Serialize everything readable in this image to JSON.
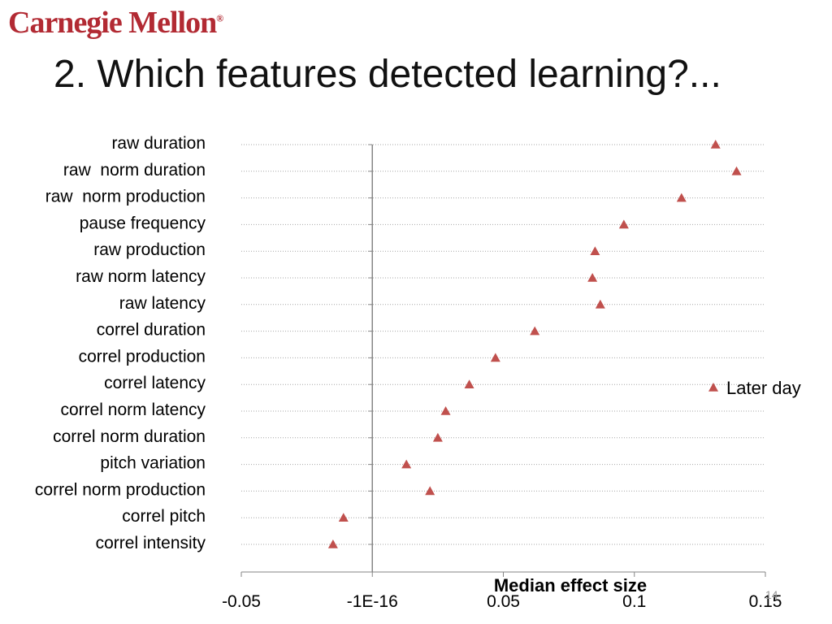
{
  "header": {
    "logo_text": "Carnegie Mellon",
    "logo_reg": "®"
  },
  "slide": {
    "title": "2. Which features detected learning?...",
    "page_number": "14"
  },
  "colors": {
    "marker": "#c0504d",
    "gridline": "#a6a6a6",
    "axis": "#868686",
    "text": "#000000"
  },
  "chart_data": {
    "type": "scatter",
    "title": "",
    "xlabel": "Median effect size",
    "ylabel": "",
    "xlim": [
      -0.05,
      0.15
    ],
    "x_ticks": [
      -0.05,
      0,
      0.05,
      0.1,
      0.15
    ],
    "x_tick_labels": [
      "-0.05",
      "-1E-16",
      "0.05",
      "0.1",
      "0.15"
    ],
    "grid": "horizontal dotted",
    "legend_position": "right",
    "categories": [
      "raw duration",
      "raw  norm duration",
      "raw  norm production",
      "pause frequency",
      "raw production",
      "raw norm latency",
      "raw latency",
      "correl duration",
      "correl production",
      "correl latency",
      "correl norm latency",
      "correl norm duration",
      "pitch variation",
      "correl norm production",
      "correl pitch",
      "correl intensity"
    ],
    "series": [
      {
        "name": "Later day",
        "marker": "triangle",
        "values": [
          0.131,
          0.139,
          0.118,
          0.096,
          0.085,
          0.084,
          0.087,
          0.062,
          0.047,
          0.037,
          0.028,
          0.025,
          0.013,
          0.022,
          -0.011,
          -0.015
        ]
      }
    ]
  }
}
